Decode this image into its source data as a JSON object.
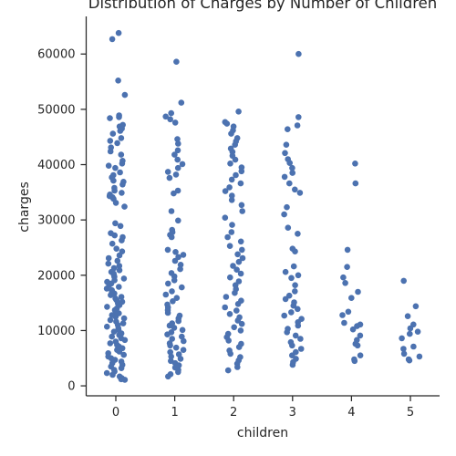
{
  "chart_data": {
    "type": "scatter",
    "title": "Distribution of Charges by Number of Children",
    "xlabel": "children",
    "ylabel": "charges",
    "categories": [
      "0",
      "1",
      "2",
      "3",
      "4",
      "5"
    ],
    "ylim": [
      -1800,
      66800
    ],
    "yticks": [
      0,
      10000,
      20000,
      30000,
      40000,
      50000,
      60000
    ],
    "ytick_labels": [
      "0",
      "10000",
      "20000",
      "30000",
      "40000",
      "50000",
      "60000"
    ],
    "grid": false,
    "marker_color": "#4c72b0",
    "series": [
      {
        "category": "0",
        "values": [
          63800,
          62700,
          55200,
          52600,
          48900,
          48600,
          48400,
          47200,
          46900,
          46500,
          46100,
          45600,
          44800,
          44300,
          43900,
          43100,
          42400,
          41800,
          40700,
          40200,
          39800,
          39400,
          38600,
          38100,
          37700,
          37100,
          36900,
          36400,
          35800,
          35300,
          34900,
          34600,
          34300,
          34100,
          33800,
          33100,
          32400,
          29400,
          28900,
          27600,
          27200,
          26900,
          26300,
          25700,
          24800,
          24300,
          23600,
          23100,
          22600,
          22100,
          21700,
          21300,
          20900,
          20600,
          20300,
          20000,
          19700,
          19400,
          19100,
          18800,
          18500,
          18200,
          17900,
          17600,
          17300,
          17000,
          16700,
          16400,
          16100,
          15800,
          15500,
          15200,
          14900,
          14600,
          14300,
          14000,
          13700,
          13400,
          13100,
          12800,
          12500,
          12200,
          11900,
          11600,
          11300,
          11000,
          10700,
          10400,
          10100,
          9800,
          9500,
          9200,
          8900,
          8600,
          8300,
          8000,
          7700,
          7400,
          7100,
          6800,
          6500,
          6200,
          5900,
          5600,
          5300,
          5000,
          4700,
          4400,
          4100,
          3800,
          3500,
          3200,
          2900,
          2600,
          2300,
          2000,
          1700,
          1400,
          1200,
          1100
        ]
      },
      {
        "category": "1",
        "values": [
          58600,
          51200,
          49300,
          48700,
          48200,
          47600,
          44600,
          43800,
          42600,
          41800,
          40900,
          40100,
          39400,
          38700,
          38200,
          37600,
          35300,
          34800,
          31600,
          29900,
          28200,
          27800,
          27300,
          26900,
          24600,
          24200,
          23700,
          23300,
          22600,
          21900,
          21100,
          20400,
          19800,
          19100,
          18500,
          17800,
          17100,
          16500,
          15900,
          15300,
          14700,
          14200,
          13700,
          13200,
          12700,
          12200,
          11700,
          11300,
          10900,
          10500,
          10100,
          9700,
          9300,
          8900,
          8500,
          8100,
          7700,
          7300,
          6900,
          6500,
          6100,
          5700,
          5300,
          4900,
          4500,
          4100,
          3700,
          3300,
          2900,
          2500,
          2100,
          1700
        ]
      },
      {
        "category": "2",
        "values": [
          49600,
          47700,
          47400,
          46900,
          46200,
          45600,
          44800,
          44200,
          43600,
          42900,
          42300,
          41600,
          40900,
          40200,
          39500,
          38800,
          38100,
          37300,
          36600,
          35900,
          35200,
          34400,
          33600,
          32700,
          31600,
          30400,
          29100,
          27800,
          26900,
          26100,
          25300,
          24600,
          23800,
          23100,
          22400,
          21700,
          21000,
          20300,
          19600,
          18900,
          18200,
          17500,
          16800,
          16100,
          15400,
          14800,
          14200,
          13600,
          13000,
          12400,
          11800,
          11200,
          10600,
          10000,
          9400,
          8800,
          8200,
          7600,
          7000,
          6400,
          5800,
          5200,
          4600,
          4000,
          3400,
          2800
        ]
      },
      {
        "category": "3",
        "values": [
          60000,
          48600,
          47100,
          46400,
          43600,
          42100,
          41000,
          40300,
          39400,
          38500,
          37800,
          36600,
          35500,
          34900,
          32300,
          31000,
          28600,
          27500,
          24800,
          24300,
          21600,
          20600,
          20000,
          19500,
          18200,
          17100,
          16300,
          15700,
          15100,
          14500,
          13900,
          13300,
          12700,
          12100,
          11500,
          10900,
          10300,
          9700,
          9100,
          8500,
          7900,
          7300,
          6700,
          6100,
          5500,
          4900,
          4300,
          3800
        ]
      },
      {
        "category": "4",
        "values": [
          40200,
          36600,
          24600,
          21500,
          19600,
          18600,
          17000,
          15900,
          13400,
          12800,
          11400,
          11100,
          10800,
          10200,
          9100,
          8300,
          7600,
          7300,
          5500,
          4800,
          4500
        ]
      },
      {
        "category": "5",
        "values": [
          19000,
          14400,
          12600,
          11100,
          10400,
          9800,
          9400,
          8600,
          7100,
          6700,
          5800,
          5300,
          4800,
          4600
        ]
      }
    ]
  }
}
